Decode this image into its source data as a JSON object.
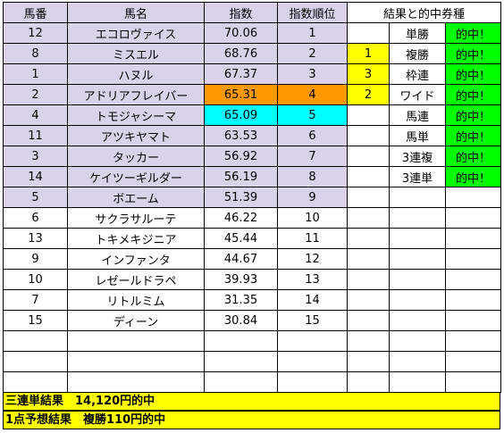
{
  "header": {
    "umaban": "馬番",
    "bamei": "馬名",
    "shisu": "指数",
    "juni": "指数順位",
    "kekka": "結果と的中券種"
  },
  "rows": [
    {
      "umaban": "12",
      "name": "エコロヴァイス",
      "shisu": "70.06",
      "rank": "1",
      "mark": "",
      "bet": "単勝",
      "hit": "的中！"
    },
    {
      "umaban": "8",
      "name": "ミスエル",
      "shisu": "68.76",
      "rank": "2",
      "mark": "1",
      "bet": "複勝",
      "hit": "的中！"
    },
    {
      "umaban": "1",
      "name": "ハヌル",
      "shisu": "67.37",
      "rank": "3",
      "mark": "3",
      "bet": "枠連",
      "hit": "的中！"
    },
    {
      "umaban": "2",
      "name": "アドリアフレイバー",
      "shisu": "65.31",
      "rank": "4",
      "mark": "2",
      "bet": "ワイド",
      "hit": "的中！"
    },
    {
      "umaban": "4",
      "name": "トモジャシーマ",
      "shisu": "65.09",
      "rank": "5",
      "mark": "",
      "bet": "馬連",
      "hit": "的中！"
    },
    {
      "umaban": "11",
      "name": "アツキヤマト",
      "shisu": "63.53",
      "rank": "6",
      "mark": "",
      "bet": "馬単",
      "hit": "的中！"
    },
    {
      "umaban": "3",
      "name": "タッカー",
      "shisu": "56.92",
      "rank": "7",
      "mark": "",
      "bet": "3連複",
      "hit": "的中！"
    },
    {
      "umaban": "14",
      "name": "ケイツーギルダー",
      "shisu": "56.19",
      "rank": "8",
      "mark": "",
      "bet": "3連単",
      "hit": "的中！"
    },
    {
      "umaban": "5",
      "name": "ボエーム",
      "shisu": "51.39",
      "rank": "9",
      "mark": "",
      "bet": "",
      "hit": ""
    },
    {
      "umaban": "6",
      "name": "サクラサルーテ",
      "shisu": "46.22",
      "rank": "10",
      "mark": "",
      "bet": "",
      "hit": ""
    },
    {
      "umaban": "13",
      "name": "トキメキジニア",
      "shisu": "45.44",
      "rank": "11",
      "mark": "",
      "bet": "",
      "hit": ""
    },
    {
      "umaban": "9",
      "name": "インファンタ",
      "shisu": "44.67",
      "rank": "12",
      "mark": "",
      "bet": "",
      "hit": ""
    },
    {
      "umaban": "10",
      "name": "レゼールドラペ",
      "shisu": "39.93",
      "rank": "13",
      "mark": "",
      "bet": "",
      "hit": ""
    },
    {
      "umaban": "7",
      "name": "リトルミム",
      "shisu": "31.35",
      "rank": "14",
      "mark": "",
      "bet": "",
      "hit": ""
    },
    {
      "umaban": "15",
      "name": "ディーン",
      "shisu": "30.84",
      "rank": "15",
      "mark": "",
      "bet": "",
      "hit": ""
    },
    {
      "umaban": "",
      "name": "",
      "shisu": "",
      "rank": "",
      "mark": "",
      "bet": "",
      "hit": ""
    },
    {
      "umaban": "",
      "name": "",
      "shisu": "",
      "rank": "",
      "mark": "",
      "bet": "",
      "hit": ""
    },
    {
      "umaban": "",
      "name": "",
      "shisu": "",
      "rank": "",
      "mark": "",
      "bet": "",
      "hit": ""
    }
  ],
  "colors": {
    "top_rank": "#d9d2e9",
    "rank4": "#ff9900",
    "rank5": "#00ffff",
    "mark": "#ffff00",
    "hit": "#00ff00"
  },
  "footer": {
    "sanrentan": "三連単結果　14,120円的中",
    "ichiten": "1点予想結果　複勝110円的中"
  }
}
